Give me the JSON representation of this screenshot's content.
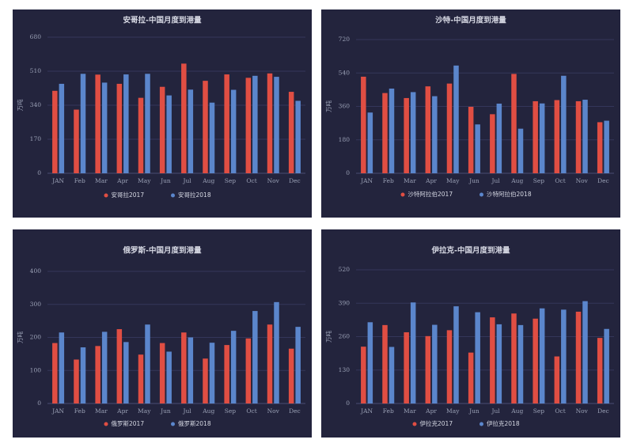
{
  "colors": {
    "series2017": "#e04e43",
    "series2018": "#5b86cc",
    "background": "#23243d",
    "grid": "#34365a"
  },
  "chart_data": [
    {
      "type": "bar",
      "title": "安哥拉-中国月度到港量",
      "ylabel": "万吨",
      "xlabel": "",
      "ylim": [
        0,
        680
      ],
      "yticks": [
        0,
        170,
        340,
        510,
        680
      ],
      "categories": [
        "JAN",
        "Feb",
        "Mar",
        "Apr",
        "May",
        "Jun",
        "Jul",
        "Aug",
        "Sep",
        "Oct",
        "Nov",
        "Dec"
      ],
      "series": [
        {
          "name": "安哥拉2017",
          "values": [
            412,
            318,
            493,
            447,
            377,
            432,
            548,
            462,
            494,
            477,
            499,
            407
          ]
        },
        {
          "name": "安哥拉2018",
          "values": [
            447,
            497,
            453,
            494,
            497,
            389,
            418,
            353,
            417,
            487,
            482,
            362
          ]
        }
      ],
      "legend": "bottom"
    },
    {
      "type": "bar",
      "title": "沙特-中国月度到港量",
      "ylabel": "万吨",
      "xlabel": "",
      "ylim": [
        0,
        720
      ],
      "yticks": [
        0,
        180,
        360,
        540,
        720
      ],
      "categories": [
        "JAN",
        "Feb",
        "Mar",
        "Apr",
        "May",
        "Jun",
        "Jul",
        "Aug",
        "Sep",
        "Oct",
        "Nov",
        "Dec"
      ],
      "series": [
        {
          "name": "沙特阿拉伯2017",
          "values": [
            520,
            432,
            405,
            468,
            483,
            358,
            318,
            535,
            388,
            394,
            388,
            275
          ]
        },
        {
          "name": "沙特阿拉伯2018",
          "values": [
            327,
            456,
            437,
            415,
            580,
            263,
            375,
            240,
            376,
            525,
            396,
            283
          ]
        }
      ],
      "legend": "bottom"
    },
    {
      "type": "bar",
      "title": "俄罗斯-中国月度到港量",
      "ylabel": "万吨",
      "xlabel": "",
      "ylim": [
        0,
        400
      ],
      "yticks": [
        0,
        100,
        200,
        300,
        400
      ],
      "categories": [
        "JAN",
        "Feb",
        "Mar",
        "Apr",
        "May",
        "Jun",
        "Jul",
        "Aug",
        "Sep",
        "Oct",
        "Nov",
        "Dec"
      ],
      "series": [
        {
          "name": "俄罗斯2017",
          "values": [
            183,
            133,
            174,
            225,
            148,
            183,
            215,
            136,
            177,
            197,
            239,
            166
          ]
        },
        {
          "name": "俄罗斯2018",
          "values": [
            215,
            170,
            217,
            186,
            239,
            157,
            200,
            184,
            220,
            280,
            307,
            232
          ]
        }
      ],
      "legend": "bottom"
    },
    {
      "type": "bar",
      "title": "伊拉克-中国月度到港量",
      "ylabel": "万吨",
      "xlabel": "",
      "ylim": [
        0,
        520
      ],
      "yticks": [
        0,
        130,
        260,
        390,
        520
      ],
      "categories": [
        "JAN",
        "Feb",
        "Mar",
        "Apr",
        "May",
        "Jun",
        "Jul",
        "Aug",
        "Sep",
        "Oct",
        "Nov",
        "Dec"
      ],
      "series": [
        {
          "name": "伊拉克2017",
          "values": [
            221,
            305,
            277,
            262,
            285,
            198,
            335,
            350,
            330,
            183,
            357,
            255
          ]
        },
        {
          "name": "伊拉克2018",
          "values": [
            316,
            220,
            393,
            306,
            378,
            355,
            308,
            305,
            370,
            365,
            398,
            290
          ]
        }
      ],
      "legend": "bottom"
    }
  ]
}
